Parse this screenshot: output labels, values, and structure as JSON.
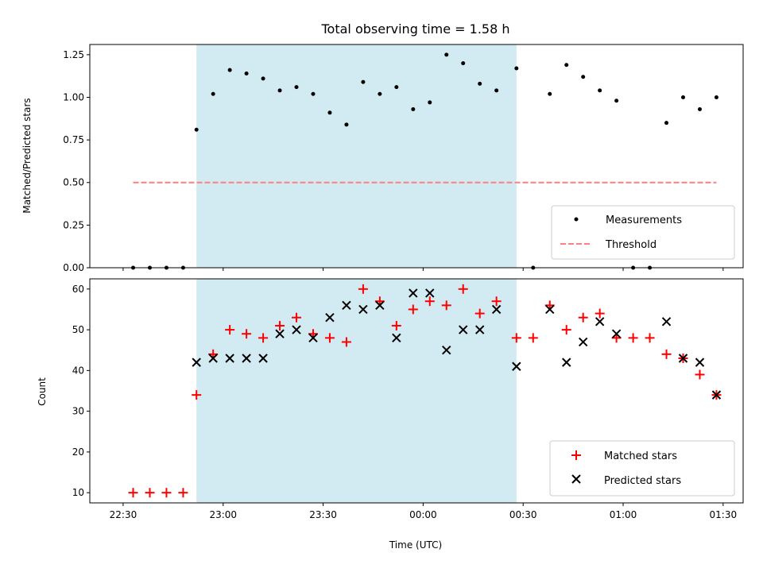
{
  "chart_data": [
    {
      "type": "scatter",
      "title": "Total observing time = 1.58 h",
      "xlabel": "",
      "ylabel": "Matched/Predicted stars",
      "ylim": [
        0,
        1.31
      ],
      "xlim": [
        "22:20",
        "01:36"
      ],
      "yticks": [
        "0.00",
        "0.25",
        "0.50",
        "0.75",
        "1.00",
        "1.25"
      ],
      "shaded_interval": [
        "22:52",
        "00:28"
      ],
      "shade_color": "#add8e6",
      "legend_position": "lower right",
      "series": [
        {
          "name": "Measurements",
          "marker": "dot",
          "color": "#000000",
          "x": [
            "22:33",
            "22:38",
            "22:43",
            "22:48",
            "22:52",
            "22:57",
            "23:02",
            "23:07",
            "23:12",
            "23:17",
            "23:22",
            "23:27",
            "23:32",
            "23:37",
            "23:42",
            "23:47",
            "23:52",
            "23:57",
            "00:02",
            "00:07",
            "00:12",
            "00:17",
            "00:22",
            "00:28",
            "00:33",
            "00:38",
            "00:43",
            "00:48",
            "00:53",
            "00:58",
            "01:03",
            "01:08",
            "01:13",
            "01:18",
            "01:23",
            "01:28"
          ],
          "y": [
            0,
            0,
            0,
            0,
            0.81,
            1.02,
            1.16,
            1.14,
            1.11,
            1.04,
            1.06,
            1.02,
            0.91,
            0.84,
            1.09,
            1.02,
            1.06,
            0.93,
            0.97,
            1.25,
            1.2,
            1.08,
            1.04,
            1.17,
            0,
            1.02,
            1.19,
            1.12,
            1.04,
            0.98,
            0,
            0,
            0.85,
            1.0,
            0.93,
            1.0
          ]
        },
        {
          "name": "Threshold",
          "style": "dashed",
          "color": "#ff7f7f",
          "x": [
            "22:33",
            "01:28"
          ],
          "y": [
            0.5,
            0.5
          ]
        }
      ]
    },
    {
      "type": "scatter",
      "xlabel": "Time (UTC)",
      "ylabel": "Count",
      "ylim": [
        7.5,
        62.5
      ],
      "xlim": [
        "22:20",
        "01:36"
      ],
      "xticks": [
        "22:30",
        "23:00",
        "23:30",
        "00:00",
        "00:30",
        "01:00",
        "01:30"
      ],
      "yticks": [
        "10",
        "20",
        "30",
        "40",
        "50",
        "60"
      ],
      "shaded_interval": [
        "22:52",
        "00:28"
      ],
      "shade_color": "#add8e6",
      "legend_position": "lower right",
      "series": [
        {
          "name": "Matched stars",
          "marker": "plus",
          "color": "#ff0000",
          "x": [
            "22:33",
            "22:38",
            "22:43",
            "22:48",
            "22:52",
            "22:57",
            "23:02",
            "23:07",
            "23:12",
            "23:17",
            "23:22",
            "23:27",
            "23:32",
            "23:37",
            "23:42",
            "23:47",
            "23:52",
            "23:57",
            "00:02",
            "00:07",
            "00:12",
            "00:17",
            "00:22",
            "00:28",
            "00:33",
            "00:38",
            "00:43",
            "00:48",
            "00:53",
            "00:58",
            "01:03",
            "01:08",
            "01:13",
            "01:18",
            "01:23",
            "01:28"
          ],
          "y": [
            10,
            10,
            10,
            10,
            34,
            44,
            50,
            49,
            48,
            51,
            53,
            49,
            48,
            47,
            60,
            57,
            51,
            55,
            57,
            56,
            60,
            54,
            57,
            48,
            48,
            56,
            50,
            53,
            54,
            48,
            48,
            48,
            44,
            43,
            39,
            34
          ]
        },
        {
          "name": "Predicted stars",
          "marker": "x",
          "color": "#000000",
          "x": [
            "22:52",
            "22:57",
            "23:02",
            "23:07",
            "23:12",
            "23:17",
            "23:22",
            "23:27",
            "23:32",
            "23:37",
            "23:42",
            "23:47",
            "23:52",
            "23:57",
            "00:02",
            "00:07",
            "00:12",
            "00:17",
            "00:22",
            "00:28",
            "00:38",
            "00:43",
            "00:48",
            "00:53",
            "00:58",
            "01:13",
            "01:18",
            "01:23",
            "01:28"
          ],
          "y": [
            42,
            43,
            43,
            43,
            43,
            49,
            50,
            48,
            53,
            56,
            55,
            56,
            48,
            59,
            59,
            45,
            50,
            50,
            55,
            41,
            55,
            42,
            47,
            52,
            49,
            52,
            43,
            42,
            34
          ]
        }
      ]
    }
  ]
}
